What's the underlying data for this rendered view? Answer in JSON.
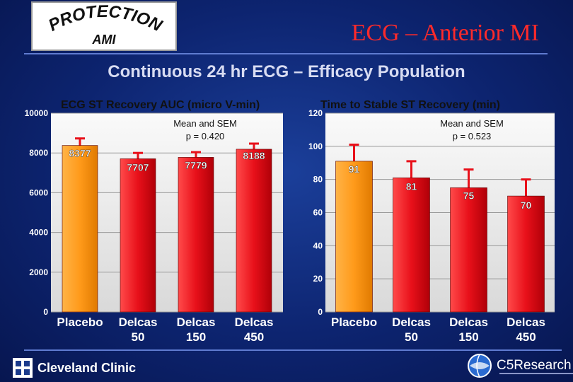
{
  "logo": {
    "text_top": "PROTECTION",
    "text_bottom": "AMI"
  },
  "slide_title": "ECG – Anterior MI",
  "subtitle": "Continuous 24 hr ECG – Efficacy Population",
  "footer": {
    "left_label": "Cleveland Clinic",
    "right_label": "C5Research"
  },
  "colors": {
    "background": "#0d2470",
    "title_red": "#ff2a2a",
    "placebo_bar": "#ff9a1a",
    "delcas_bar": "#e8101a",
    "error_bar": "#e8101a"
  },
  "chart_data": [
    {
      "type": "bar",
      "title": "ECG ST Recovery AUC (micro V-min)",
      "annotation": [
        "Mean and SEM",
        "p = 0.420"
      ],
      "categories": [
        [
          "Placebo"
        ],
        [
          "Delcas",
          "50"
        ],
        [
          "Delcas",
          "150"
        ],
        [
          "Delcas",
          "450"
        ]
      ],
      "values": [
        8377,
        7707,
        7779,
        8188
      ],
      "value_labels": [
        "8377",
        "7707",
        "7779",
        "8188"
      ],
      "error_tops": [
        8730,
        8000,
        8040,
        8470
      ],
      "ylim": [
        0,
        10000
      ],
      "yticks": [
        0,
        2000,
        4000,
        6000,
        8000,
        10000
      ],
      "grid": true
    },
    {
      "type": "bar",
      "title": "Time to Stable ST Recovery (min)",
      "annotation": [
        "Mean and SEM",
        "p = 0.523"
      ],
      "categories": [
        [
          "Placebo"
        ],
        [
          "Delcas",
          "50"
        ],
        [
          "Delcas",
          "150"
        ],
        [
          "Delcas",
          "450"
        ]
      ],
      "values": [
        91,
        81,
        75,
        70
      ],
      "value_labels": [
        "91",
        "81",
        "75",
        "70"
      ],
      "error_tops": [
        101,
        91,
        86,
        80
      ],
      "ylim": [
        0,
        120
      ],
      "yticks": [
        0,
        20,
        40,
        60,
        80,
        100,
        120
      ],
      "grid": true
    }
  ]
}
